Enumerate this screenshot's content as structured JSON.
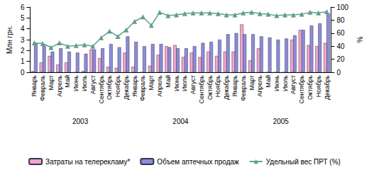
{
  "chart_data": {
    "type": "bar",
    "ylabel": "Млн грн.",
    "y2label": "%",
    "categories": [
      "Январь",
      "Февраль",
      "Март",
      "Апрель",
      "Май",
      "Июнь",
      "Июль",
      "Август",
      "Сентябрь",
      "Октябрь",
      "Ноябрь",
      "Декабрь",
      "Январь",
      "Февраль",
      "Март",
      "Апрель",
      "Май",
      "Июнь",
      "Июль",
      "Август",
      "Сентябрь",
      "Октябрь",
      "Ноябрь",
      "Декабрь",
      "Январь",
      "Февраль",
      "Март",
      "Апрель",
      "Май",
      "Июнь",
      "Июль",
      "Август",
      "Сентябрь",
      "Октябрь",
      "Ноябрь",
      "Декабрь"
    ],
    "category_groups": [
      "2003",
      "2004",
      "2005"
    ],
    "series": [
      {
        "name": "Затраты на телерекламу*",
        "type": "bar",
        "color": "#f4a6c8",
        "values": [
          0.1,
          0.9,
          1.5,
          0.7,
          0.9,
          0.0,
          0.1,
          2.1,
          1.3,
          0.5,
          0.4,
          1.8,
          0.5,
          0.0,
          0.6,
          1.6,
          2.4,
          2.5,
          1.4,
          1.8,
          1.4,
          1.9,
          1.5,
          1.9,
          1.9,
          4.4,
          1.1,
          2.2,
          0.0,
          0.0,
          0.0,
          3.0,
          3.9,
          2.5,
          2.4,
          2.7
        ]
      },
      {
        "name": "Объем аптечных продаж",
        "type": "bar",
        "color": "#8c8cd8",
        "values": [
          2.7,
          2.4,
          1.9,
          2.2,
          1.9,
          1.8,
          1.7,
          2.1,
          2.2,
          2.6,
          2.3,
          3.3,
          2.8,
          2.4,
          2.6,
          2.6,
          2.3,
          2.2,
          2.2,
          2.4,
          2.7,
          2.8,
          3.0,
          3.5,
          3.6,
          3.5,
          3.5,
          3.3,
          3.2,
          3.0,
          3.1,
          3.4,
          3.9,
          4.3,
          4.5,
          5.4
        ]
      },
      {
        "name": "Удельный вес ПРТ (%)",
        "type": "line",
        "axis": "y2",
        "color": "#5e9e8e",
        "marker": "triangle",
        "values": [
          45,
          44,
          38,
          45,
          40,
          41,
          42,
          40,
          53,
          63,
          55,
          65,
          78,
          85,
          72,
          92,
          87,
          88,
          90,
          91,
          91,
          91,
          90,
          88,
          88,
          91,
          92,
          90,
          89,
          87,
          88,
          88,
          89,
          92,
          91,
          93
        ]
      }
    ],
    "ylim": [
      0,
      6
    ],
    "yticks": [
      0,
      1,
      2,
      3,
      4,
      5,
      6
    ],
    "y2lim": [
      0,
      100
    ],
    "y2ticks": [
      0,
      20,
      40,
      60,
      80,
      100
    ],
    "legend": "bottom",
    "grid": false
  }
}
